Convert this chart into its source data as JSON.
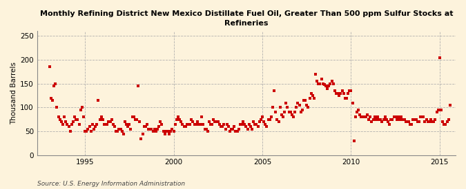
{
  "title_line1": "Monthly Refining District New Mexico Distillate Fuel Oil, Greater Than 500 ppm Sulfur Stocks at",
  "title_line2": "Refineries",
  "ylabel": "Thousand Barrels",
  "source": "Source: U.S. Energy Information Administration",
  "background_color": "#fdf3dc",
  "plot_background": "#fdf3dc",
  "marker_color": "#cc0000",
  "marker_size": 6,
  "xlim_left": 1992.3,
  "xlim_right": 2015.9,
  "ylim_bottom": 0,
  "ylim_top": 260,
  "yticks": [
    0,
    50,
    100,
    150,
    200,
    250
  ],
  "xticks": [
    1995,
    2000,
    2005,
    2010,
    2015
  ],
  "dates": [
    1993.0,
    1993.083,
    1993.167,
    1993.25,
    1993.333,
    1993.417,
    1993.5,
    1993.583,
    1993.667,
    1993.75,
    1993.833,
    1993.917,
    1994.0,
    1994.083,
    1994.167,
    1994.25,
    1994.333,
    1994.417,
    1994.5,
    1994.583,
    1994.667,
    1994.75,
    1994.833,
    1994.917,
    1995.0,
    1995.083,
    1995.167,
    1995.25,
    1995.333,
    1995.417,
    1995.5,
    1995.583,
    1995.667,
    1995.75,
    1995.833,
    1995.917,
    1996.0,
    1996.083,
    1996.167,
    1996.25,
    1996.333,
    1996.417,
    1996.5,
    1996.583,
    1996.667,
    1996.75,
    1996.833,
    1996.917,
    1997.0,
    1997.083,
    1997.167,
    1997.25,
    1997.333,
    1997.417,
    1997.5,
    1997.583,
    1997.667,
    1997.75,
    1997.833,
    1997.917,
    1998.0,
    1998.083,
    1998.167,
    1998.25,
    1998.333,
    1998.417,
    1998.5,
    1998.583,
    1998.667,
    1998.75,
    1998.833,
    1998.917,
    1999.0,
    1999.083,
    1999.167,
    1999.25,
    1999.333,
    1999.417,
    1999.5,
    1999.583,
    1999.667,
    1999.75,
    1999.833,
    1999.917,
    2000.0,
    2000.083,
    2000.167,
    2000.25,
    2000.333,
    2000.417,
    2000.5,
    2000.583,
    2000.667,
    2000.75,
    2000.833,
    2000.917,
    2001.0,
    2001.083,
    2001.167,
    2001.25,
    2001.333,
    2001.417,
    2001.5,
    2001.583,
    2001.667,
    2001.75,
    2001.833,
    2001.917,
    2002.0,
    2002.083,
    2002.167,
    2002.25,
    2002.333,
    2002.417,
    2002.5,
    2002.583,
    2002.667,
    2002.75,
    2002.833,
    2002.917,
    2003.0,
    2003.083,
    2003.167,
    2003.25,
    2003.333,
    2003.417,
    2003.5,
    2003.583,
    2003.667,
    2003.75,
    2003.833,
    2003.917,
    2004.0,
    2004.083,
    2004.167,
    2004.25,
    2004.333,
    2004.417,
    2004.5,
    2004.583,
    2004.667,
    2004.75,
    2004.833,
    2004.917,
    2005.0,
    2005.083,
    2005.167,
    2005.25,
    2005.333,
    2005.417,
    2005.5,
    2005.583,
    2005.667,
    2005.75,
    2005.833,
    2005.917,
    2006.0,
    2006.083,
    2006.167,
    2006.25,
    2006.333,
    2006.417,
    2006.5,
    2006.583,
    2006.667,
    2006.75,
    2006.833,
    2006.917,
    2007.0,
    2007.083,
    2007.167,
    2007.25,
    2007.333,
    2007.417,
    2007.5,
    2007.583,
    2007.667,
    2007.75,
    2007.833,
    2007.917,
    2008.0,
    2008.083,
    2008.167,
    2008.25,
    2008.333,
    2008.417,
    2008.5,
    2008.583,
    2008.667,
    2008.75,
    2008.833,
    2008.917,
    2009.0,
    2009.083,
    2009.167,
    2009.25,
    2009.333,
    2009.417,
    2009.5,
    2009.583,
    2009.667,
    2009.75,
    2009.833,
    2009.917,
    2010.0,
    2010.083,
    2010.167,
    2010.25,
    2010.333,
    2010.417,
    2010.5,
    2010.583,
    2010.667,
    2010.75,
    2010.833,
    2010.917,
    2011.0,
    2011.083,
    2011.167,
    2011.25,
    2011.333,
    2011.417,
    2011.5,
    2011.583,
    2011.667,
    2011.75,
    2011.833,
    2011.917,
    2012.0,
    2012.083,
    2012.167,
    2012.25,
    2012.333,
    2012.417,
    2012.5,
    2012.583,
    2012.667,
    2012.75,
    2012.833,
    2012.917,
    2013.0,
    2013.083,
    2013.167,
    2013.25,
    2013.333,
    2013.417,
    2013.5,
    2013.583,
    2013.667,
    2013.75,
    2013.833,
    2013.917,
    2014.0,
    2014.083,
    2014.167,
    2014.25,
    2014.333,
    2014.417,
    2014.5,
    2014.583,
    2014.667,
    2014.75,
    2014.833,
    2014.917,
    2015.0,
    2015.083,
    2015.167,
    2015.25,
    2015.333,
    2015.417,
    2015.5,
    2015.583
  ],
  "values": [
    185,
    120,
    115,
    145,
    150,
    100,
    80,
    75,
    70,
    65,
    80,
    70,
    65,
    60,
    50,
    65,
    70,
    80,
    75,
    75,
    65,
    95,
    100,
    80,
    50,
    50,
    55,
    60,
    50,
    65,
    55,
    60,
    65,
    115,
    75,
    80,
    75,
    65,
    65,
    65,
    70,
    70,
    75,
    65,
    60,
    50,
    50,
    55,
    55,
    50,
    45,
    70,
    65,
    60,
    65,
    55,
    80,
    80,
    75,
    75,
    145,
    70,
    35,
    45,
    60,
    60,
    65,
    55,
    55,
    55,
    50,
    55,
    50,
    55,
    60,
    70,
    65,
    50,
    45,
    50,
    50,
    45,
    50,
    55,
    50,
    65,
    75,
    80,
    75,
    70,
    65,
    60,
    60,
    65,
    65,
    65,
    75,
    70,
    65,
    65,
    70,
    65,
    65,
    80,
    65,
    55,
    55,
    50,
    70,
    65,
    65,
    75,
    70,
    70,
    70,
    65,
    60,
    60,
    65,
    55,
    65,
    60,
    50,
    55,
    55,
    60,
    50,
    50,
    55,
    65,
    65,
    70,
    65,
    60,
    55,
    65,
    60,
    55,
    70,
    65,
    65,
    60,
    70,
    75,
    80,
    70,
    65,
    60,
    75,
    75,
    80,
    100,
    135,
    90,
    75,
    70,
    100,
    85,
    80,
    90,
    110,
    100,
    90,
    90,
    85,
    80,
    90,
    100,
    110,
    105,
    90,
    95,
    115,
    115,
    105,
    100,
    120,
    130,
    125,
    120,
    170,
    155,
    150,
    150,
    160,
    150,
    148,
    145,
    140,
    145,
    150,
    155,
    150,
    135,
    130,
    130,
    125,
    130,
    135,
    130,
    120,
    120,
    130,
    135,
    135,
    110,
    30,
    80,
    90,
    95,
    85,
    80,
    80,
    80,
    80,
    85,
    75,
    80,
    70,
    75,
    80,
    75,
    80,
    75,
    75,
    70,
    75,
    80,
    75,
    70,
    65,
    75,
    75,
    80,
    80,
    75,
    80,
    75,
    80,
    75,
    75,
    70,
    70,
    70,
    65,
    65,
    75,
    75,
    75,
    70,
    70,
    80,
    80,
    80,
    70,
    75,
    70,
    70,
    75,
    70,
    70,
    75,
    90,
    95,
    205,
    95,
    70,
    65,
    65,
    70,
    75,
    105
  ]
}
